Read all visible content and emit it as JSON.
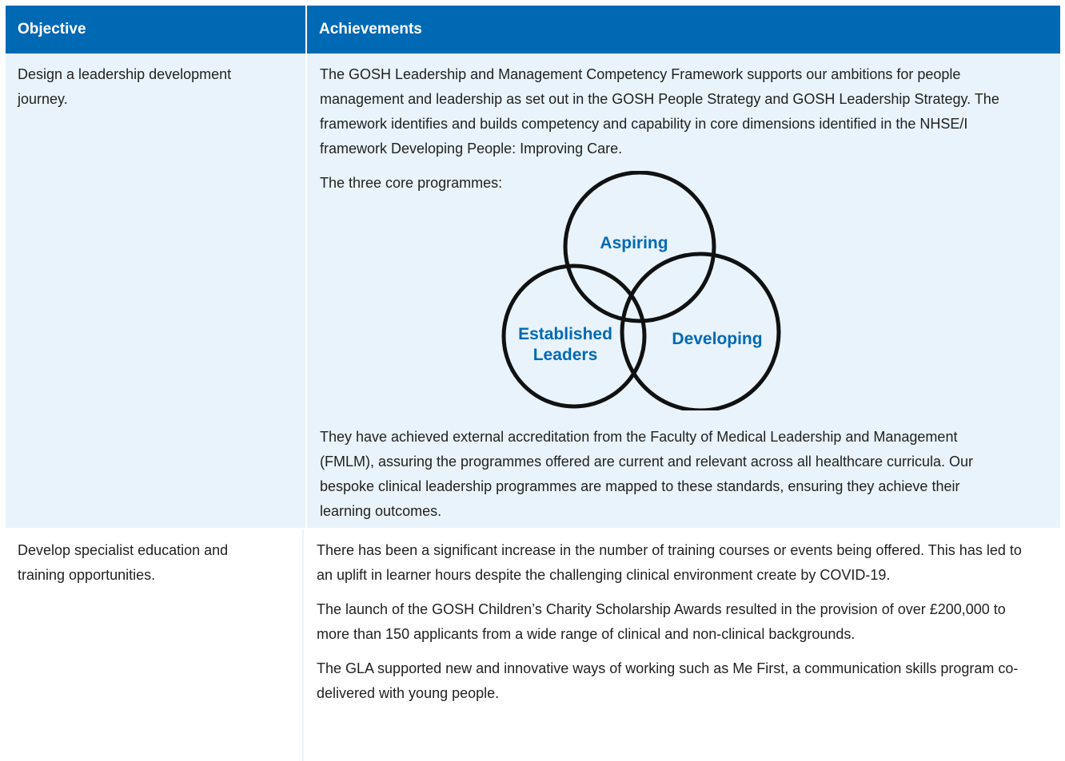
{
  "table": {
    "headers": [
      "Objective",
      "Achievements"
    ],
    "rows": [
      {
        "objective": "Design a leadership development journey.",
        "achievements": [
          "The GOSH Leadership and Management Competency Framework supports our ambitions for people management and leadership as set out in the GOSH People Strategy and GOSH Leadership Strategy. The framework identifies and builds competency and capability in core dimensions identified in the NHSE/I framework Developing People: Improving Care.",
          "The three core programmes:",
          "They have achieved external accreditation from the Faculty of Medical Leadership and Management (FMLM), assuring the programmes offered are current and relevant across all healthcare curricula. Our bespoke clinical leadership programmes are mapped to these standards, ensuring they achieve their learning outcomes."
        ],
        "diagram": {
          "labels": [
            "Aspiring",
            "Established Leaders",
            "Developing"
          ]
        }
      },
      {
        "objective": "Develop specialist education and training opportunities.",
        "achievements": [
          "There has been a significant increase in the number of training courses or events being offered. This has led to an uplift in learner hours despite the challenging clinical environment create by COVID-19.",
          "The launch of the GOSH Children’s Charity Scholarship Awards resulted in the provision of over £200,000 to more than 150 applicants from a wide range of clinical and non-clinical backgrounds.",
          "The GLA supported new and innovative ways of working such as Me First, a communication skills program co-delivered with young people."
        ]
      }
    ]
  }
}
